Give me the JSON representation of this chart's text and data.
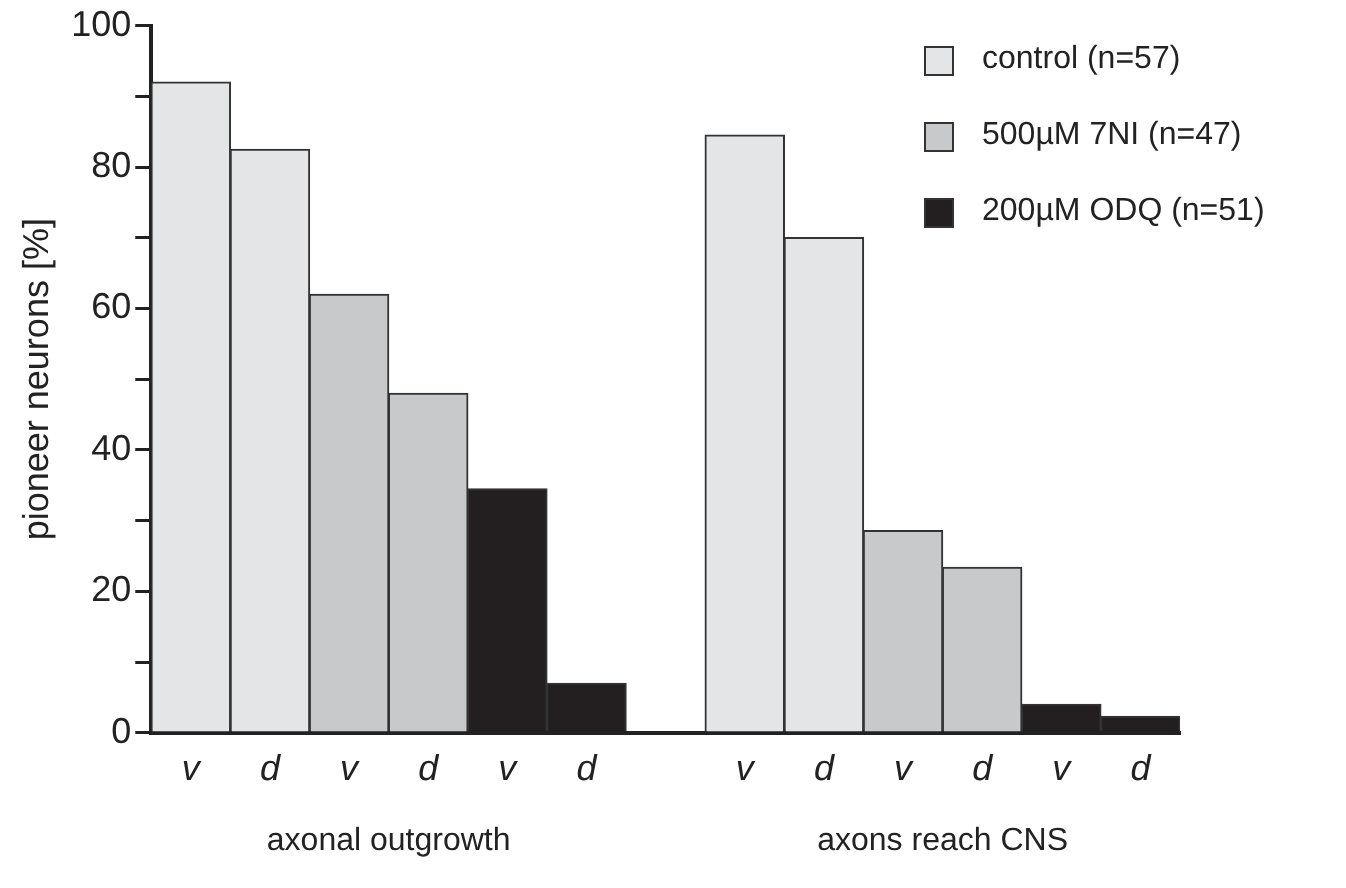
{
  "chart_data": {
    "type": "bar",
    "ylabel": "pioneer neurons [%]",
    "categories": [
      "v",
      "d",
      "v",
      "d",
      "v",
      "d",
      null,
      "v",
      "d",
      "v",
      "d",
      "v",
      "d"
    ],
    "series": [
      {
        "name": "control (n=57)",
        "color": "#e4e5e7",
        "values": [
          92,
          82.5,
          null,
          null,
          null,
          null,
          null,
          84.5,
          70,
          null,
          null,
          null,
          null
        ]
      },
      {
        "name": "500µM 7NI (n=47)",
        "color": "#c8c9cb",
        "values": [
          null,
          null,
          62,
          48,
          null,
          null,
          null,
          null,
          null,
          28.6,
          23.4,
          null,
          null
        ]
      },
      {
        "name": "200µM ODQ (n=51)",
        "color": "#231f20",
        "values": [
          null,
          null,
          null,
          null,
          34.5,
          7,
          null,
          null,
          null,
          null,
          null,
          4,
          2.3
        ]
      }
    ],
    "ylim": [
      0,
      100
    ],
    "yticks": [
      0,
      {
        "value": 10,
        "label": null
      },
      20,
      {
        "value": 30,
        "label": null
      },
      40,
      {
        "value": 50,
        "label": null
      },
      60,
      {
        "value": 70,
        "label": null
      },
      80,
      {
        "value": 90,
        "label": null
      },
      100
    ],
    "annotations": [
      "axonal outgrowth",
      "axons reach CNS"
    ],
    "grid": false,
    "legend": "top right"
  }
}
